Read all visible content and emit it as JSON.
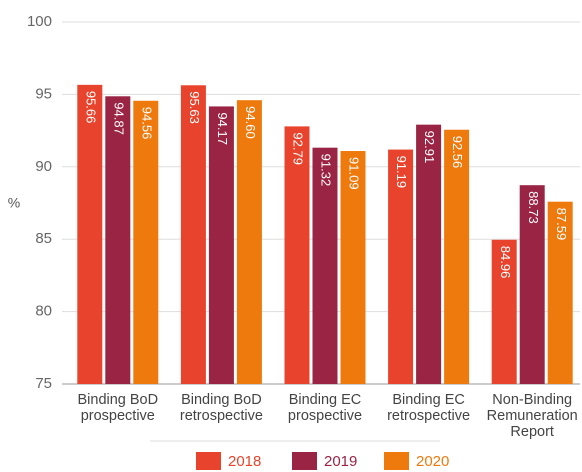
{
  "chart_data": {
    "type": "bar",
    "y_label": "%",
    "categories": [
      "Binding BoD\nprospective",
      "Binding BoD\nretrospective",
      "Binding EC\nprospective",
      "Binding EC\nretrospective",
      "Non-Binding\nRemuneration\nReport"
    ],
    "series": [
      {
        "name": "2018",
        "color": "#e8432c",
        "values": [
          95.66,
          95.63,
          92.79,
          91.19,
          84.96
        ],
        "value_labels": [
          "95.66",
          "95.63",
          "92.79",
          "91.19",
          "84.96"
        ]
      },
      {
        "name": "2019",
        "color": "#9a2444",
        "values": [
          94.87,
          94.17,
          91.32,
          92.91,
          88.73
        ],
        "value_labels": [
          "94.87",
          "94.17",
          "91.32",
          "92.91",
          "88.73"
        ]
      },
      {
        "name": "2020",
        "color": "#ee7a0e",
        "values": [
          94.56,
          94.6,
          91.09,
          92.56,
          87.59
        ],
        "value_labels": [
          "94.56",
          "94.60",
          "91.09",
          "92.56",
          "87.59"
        ]
      }
    ],
    "ylim": [
      75,
      100
    ],
    "yticks": [
      75,
      80,
      85,
      90,
      95,
      100
    ],
    "grid": true,
    "legend": "bottom"
  }
}
